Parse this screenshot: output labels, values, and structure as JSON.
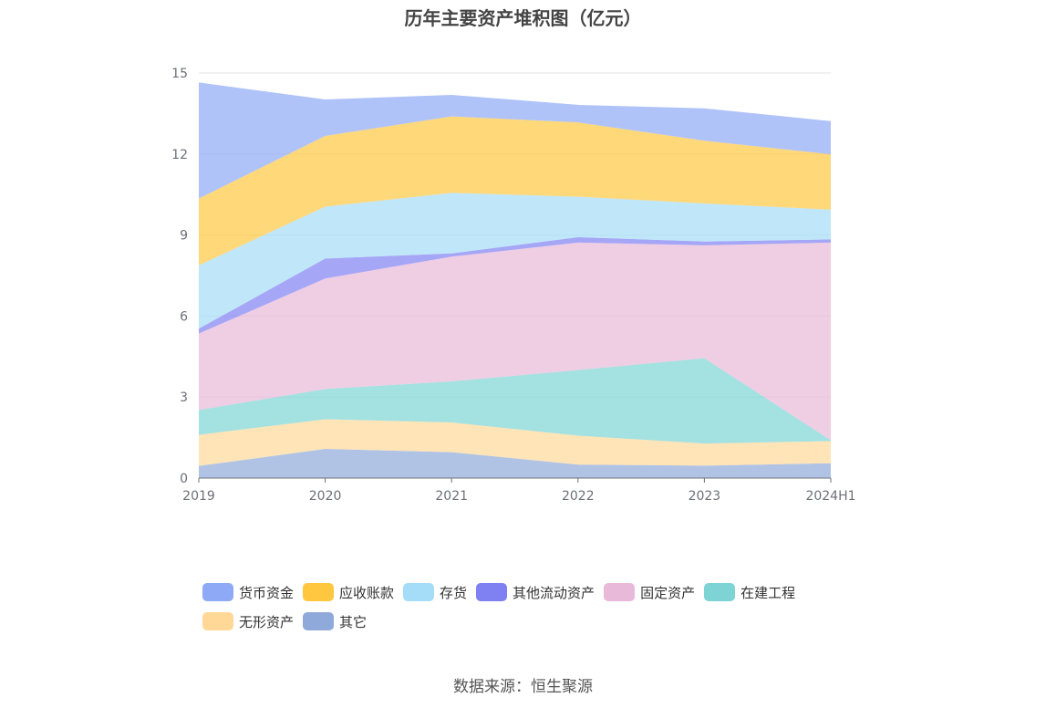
{
  "title": "历年主要资产堆积图（亿元）",
  "source": "数据来源：恒生聚源",
  "colors": {
    "货币资金": "#8eaaf7",
    "应收账款": "#ffc740",
    "存货": "#a5dcf8",
    "其他流动资产": "#7f80f2",
    "固定资产": "#e8b9d9",
    "在建工程": "#7ed4d4",
    "无形资产": "#ffd898",
    "其它": "#8fa9da"
  },
  "chart_data": {
    "type": "area",
    "stacked": true,
    "title": "历年主要资产堆积图（亿元）",
    "x": [
      "2019",
      "2020",
      "2021",
      "2022",
      "2023",
      "2024H1"
    ],
    "ylim": [
      0,
      15
    ],
    "yticks": [
      0,
      3,
      6,
      9,
      12,
      15
    ],
    "grid": true,
    "legend_position": "bottom",
    "series": [
      {
        "name": "其它",
        "values": [
          0.45,
          1.08,
          0.96,
          0.5,
          0.46,
          0.55
        ]
      },
      {
        "name": "无形资产",
        "values": [
          1.15,
          1.1,
          1.1,
          1.07,
          0.82,
          0.82
        ]
      },
      {
        "name": "在建工程",
        "values": [
          0.92,
          1.12,
          1.52,
          2.43,
          3.16,
          0.03
        ]
      },
      {
        "name": "固定资产",
        "values": [
          2.83,
          4.09,
          4.62,
          4.72,
          4.18,
          7.32
        ]
      },
      {
        "name": "其他流动资产",
        "values": [
          0.18,
          0.74,
          0.12,
          0.2,
          0.14,
          0.12
        ]
      },
      {
        "name": "存货",
        "values": [
          2.35,
          1.92,
          2.24,
          1.5,
          1.41,
          1.1
        ]
      },
      {
        "name": "应收账款",
        "values": [
          2.47,
          2.62,
          2.83,
          2.75,
          2.32,
          2.05
        ]
      },
      {
        "name": "货币资金",
        "values": [
          4.3,
          1.35,
          0.8,
          0.65,
          1.2,
          1.23
        ]
      }
    ]
  },
  "legend": {
    "items": [
      "货币资金",
      "应收账款",
      "存货",
      "其他流动资产",
      "固定资产",
      "在建工程",
      "无形资产",
      "其它"
    ]
  }
}
